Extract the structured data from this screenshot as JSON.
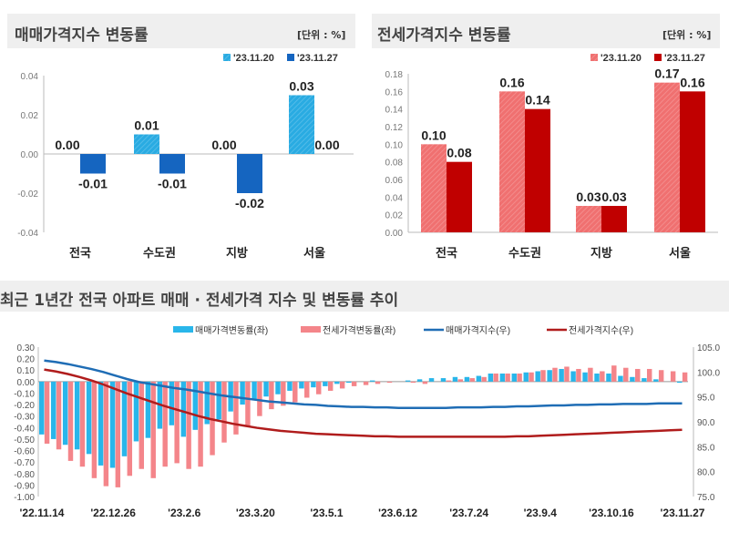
{
  "chart_data": [
    {
      "type": "bar",
      "title": "매매가격지수 변동률",
      "unit": "[단위 : %]",
      "categories": [
        "전국",
        "수도권",
        "지방",
        "서울"
      ],
      "series": [
        {
          "name": "'23.11.20",
          "values": [
            0.0,
            0.01,
            0.0,
            0.03
          ],
          "color": "#29abe2"
        },
        {
          "name": "'23.11.27",
          "values": [
            -0.01,
            -0.01,
            -0.02,
            0.0
          ],
          "color": "#1565c0"
        }
      ],
      "ylim": [
        -0.04,
        0.04
      ],
      "yticks": [
        "0.04",
        "0.02",
        "0.00",
        "-0.02",
        "-0.04"
      ],
      "legend": "top-right"
    },
    {
      "type": "bar",
      "title": "전세가격지수 변동률",
      "unit": "[단위 : %]",
      "categories": [
        "전국",
        "수도권",
        "지방",
        "서울"
      ],
      "series": [
        {
          "name": "'23.11.20",
          "values": [
            0.1,
            0.16,
            0.03,
            0.17
          ],
          "color": "#f07070"
        },
        {
          "name": "'23.11.27",
          "values": [
            0.08,
            0.14,
            0.03,
            0.16
          ],
          "color": "#c00000"
        }
      ],
      "ylim": [
        0,
        0.18
      ],
      "yticks": [
        "0.18",
        "0.16",
        "0.14",
        "0.12",
        "0.10",
        "0.08",
        "0.06",
        "0.04",
        "0.02",
        "0.00"
      ],
      "legend": "top-right"
    },
    {
      "type": "bar+line",
      "title": "최근 1년간 전국 아파트 매매 · 전세가격 지수 및 변동률 추이",
      "xticks": [
        "'22.11.14",
        "'22.12.26",
        "'23.2.6",
        "'23.3.20",
        "'23.5.1",
        "'23.6.12",
        "'23.7.24",
        "'23.9.4",
        "'23.10.16",
        "'23.11.27"
      ],
      "ylim_left": [
        -1.0,
        0.3
      ],
      "yticks_left": [
        "0.30",
        "0.20",
        "0.10",
        "0.00",
        "-0.10",
        "-0.20",
        "-0.30",
        "-0.40",
        "-0.50",
        "-0.60",
        "-0.70",
        "-0.80",
        "-0.90",
        "-1.00"
      ],
      "ylim_right": [
        75,
        105
      ],
      "yticks_right": [
        "105.0",
        "100.0",
        "95.0",
        "90.0",
        "85.0",
        "80.0",
        "75.0"
      ],
      "legend": "top",
      "series": [
        {
          "name": "매매가격변동률(좌)",
          "kind": "bar",
          "axis": "left",
          "color": "#29b6ea",
          "values": [
            -0.46,
            -0.5,
            -0.55,
            -0.59,
            -0.63,
            -0.73,
            -0.75,
            -0.65,
            -0.52,
            -0.49,
            -0.41,
            -0.38,
            -0.48,
            -0.42,
            -0.37,
            -0.33,
            -0.26,
            -0.2,
            -0.16,
            -0.13,
            -0.11,
            -0.08,
            -0.06,
            -0.05,
            -0.04,
            -0.02,
            -0.01,
            0.0,
            0.01,
            0.0,
            0.0,
            0.01,
            0.02,
            0.03,
            0.03,
            0.04,
            0.04,
            0.05,
            0.07,
            0.07,
            0.07,
            0.08,
            0.09,
            0.1,
            0.11,
            0.09,
            0.08,
            0.07,
            0.07,
            0.05,
            0.04,
            0.03,
            0.02,
            0.0,
            -0.01
          ]
        },
        {
          "name": "전세가격변동률(좌)",
          "kind": "bar",
          "axis": "left",
          "color": "#f4858a",
          "values": [
            -0.54,
            -0.59,
            -0.69,
            -0.74,
            -0.84,
            -0.91,
            -0.92,
            -0.82,
            -0.76,
            -0.84,
            -0.74,
            -0.71,
            -0.76,
            -0.74,
            -0.64,
            -0.53,
            -0.46,
            -0.39,
            -0.3,
            -0.24,
            -0.21,
            -0.18,
            -0.14,
            -0.11,
            -0.08,
            -0.06,
            -0.04,
            -0.03,
            -0.02,
            -0.01,
            0.0,
            -0.01,
            -0.02,
            0.0,
            0.01,
            0.02,
            0.03,
            0.04,
            0.07,
            0.07,
            0.07,
            0.08,
            0.1,
            0.12,
            0.13,
            0.11,
            0.12,
            0.09,
            0.14,
            0.12,
            0.11,
            0.11,
            0.1,
            0.09,
            0.08
          ]
        },
        {
          "name": "매매가격지수(우)",
          "kind": "line",
          "axis": "right",
          "color": "#1f6db5",
          "values": [
            102.3,
            102.0,
            101.6,
            101.1,
            100.6,
            100.0,
            99.3,
            98.6,
            98.0,
            97.6,
            97.2,
            96.8,
            96.5,
            96.1,
            95.7,
            95.3,
            95.0,
            94.7,
            94.4,
            94.1,
            93.9,
            93.7,
            93.5,
            93.4,
            93.2,
            93.1,
            93.0,
            93.0,
            92.9,
            92.9,
            92.8,
            92.8,
            92.8,
            92.8,
            92.8,
            92.9,
            92.9,
            92.9,
            93.0,
            93.0,
            93.1,
            93.1,
            93.2,
            93.3,
            93.3,
            93.4,
            93.4,
            93.5,
            93.5,
            93.6,
            93.6,
            93.6,
            93.7,
            93.7,
            93.7
          ]
        },
        {
          "name": "전세가격지수(우)",
          "kind": "line",
          "axis": "right",
          "color": "#b01c1c",
          "values": [
            100.5,
            100.1,
            99.6,
            99.0,
            98.3,
            97.5,
            96.6,
            95.7,
            94.9,
            94.1,
            93.3,
            92.6,
            91.9,
            91.2,
            90.6,
            90.1,
            89.6,
            89.2,
            88.8,
            88.5,
            88.2,
            88.0,
            87.8,
            87.6,
            87.5,
            87.4,
            87.3,
            87.2,
            87.1,
            87.1,
            87.0,
            87.0,
            87.0,
            87.0,
            87.0,
            87.0,
            87.0,
            87.0,
            87.0,
            87.0,
            87.1,
            87.1,
            87.2,
            87.3,
            87.4,
            87.5,
            87.6,
            87.7,
            87.8,
            87.9,
            88.0,
            88.1,
            88.2,
            88.3,
            88.4
          ]
        }
      ]
    }
  ]
}
